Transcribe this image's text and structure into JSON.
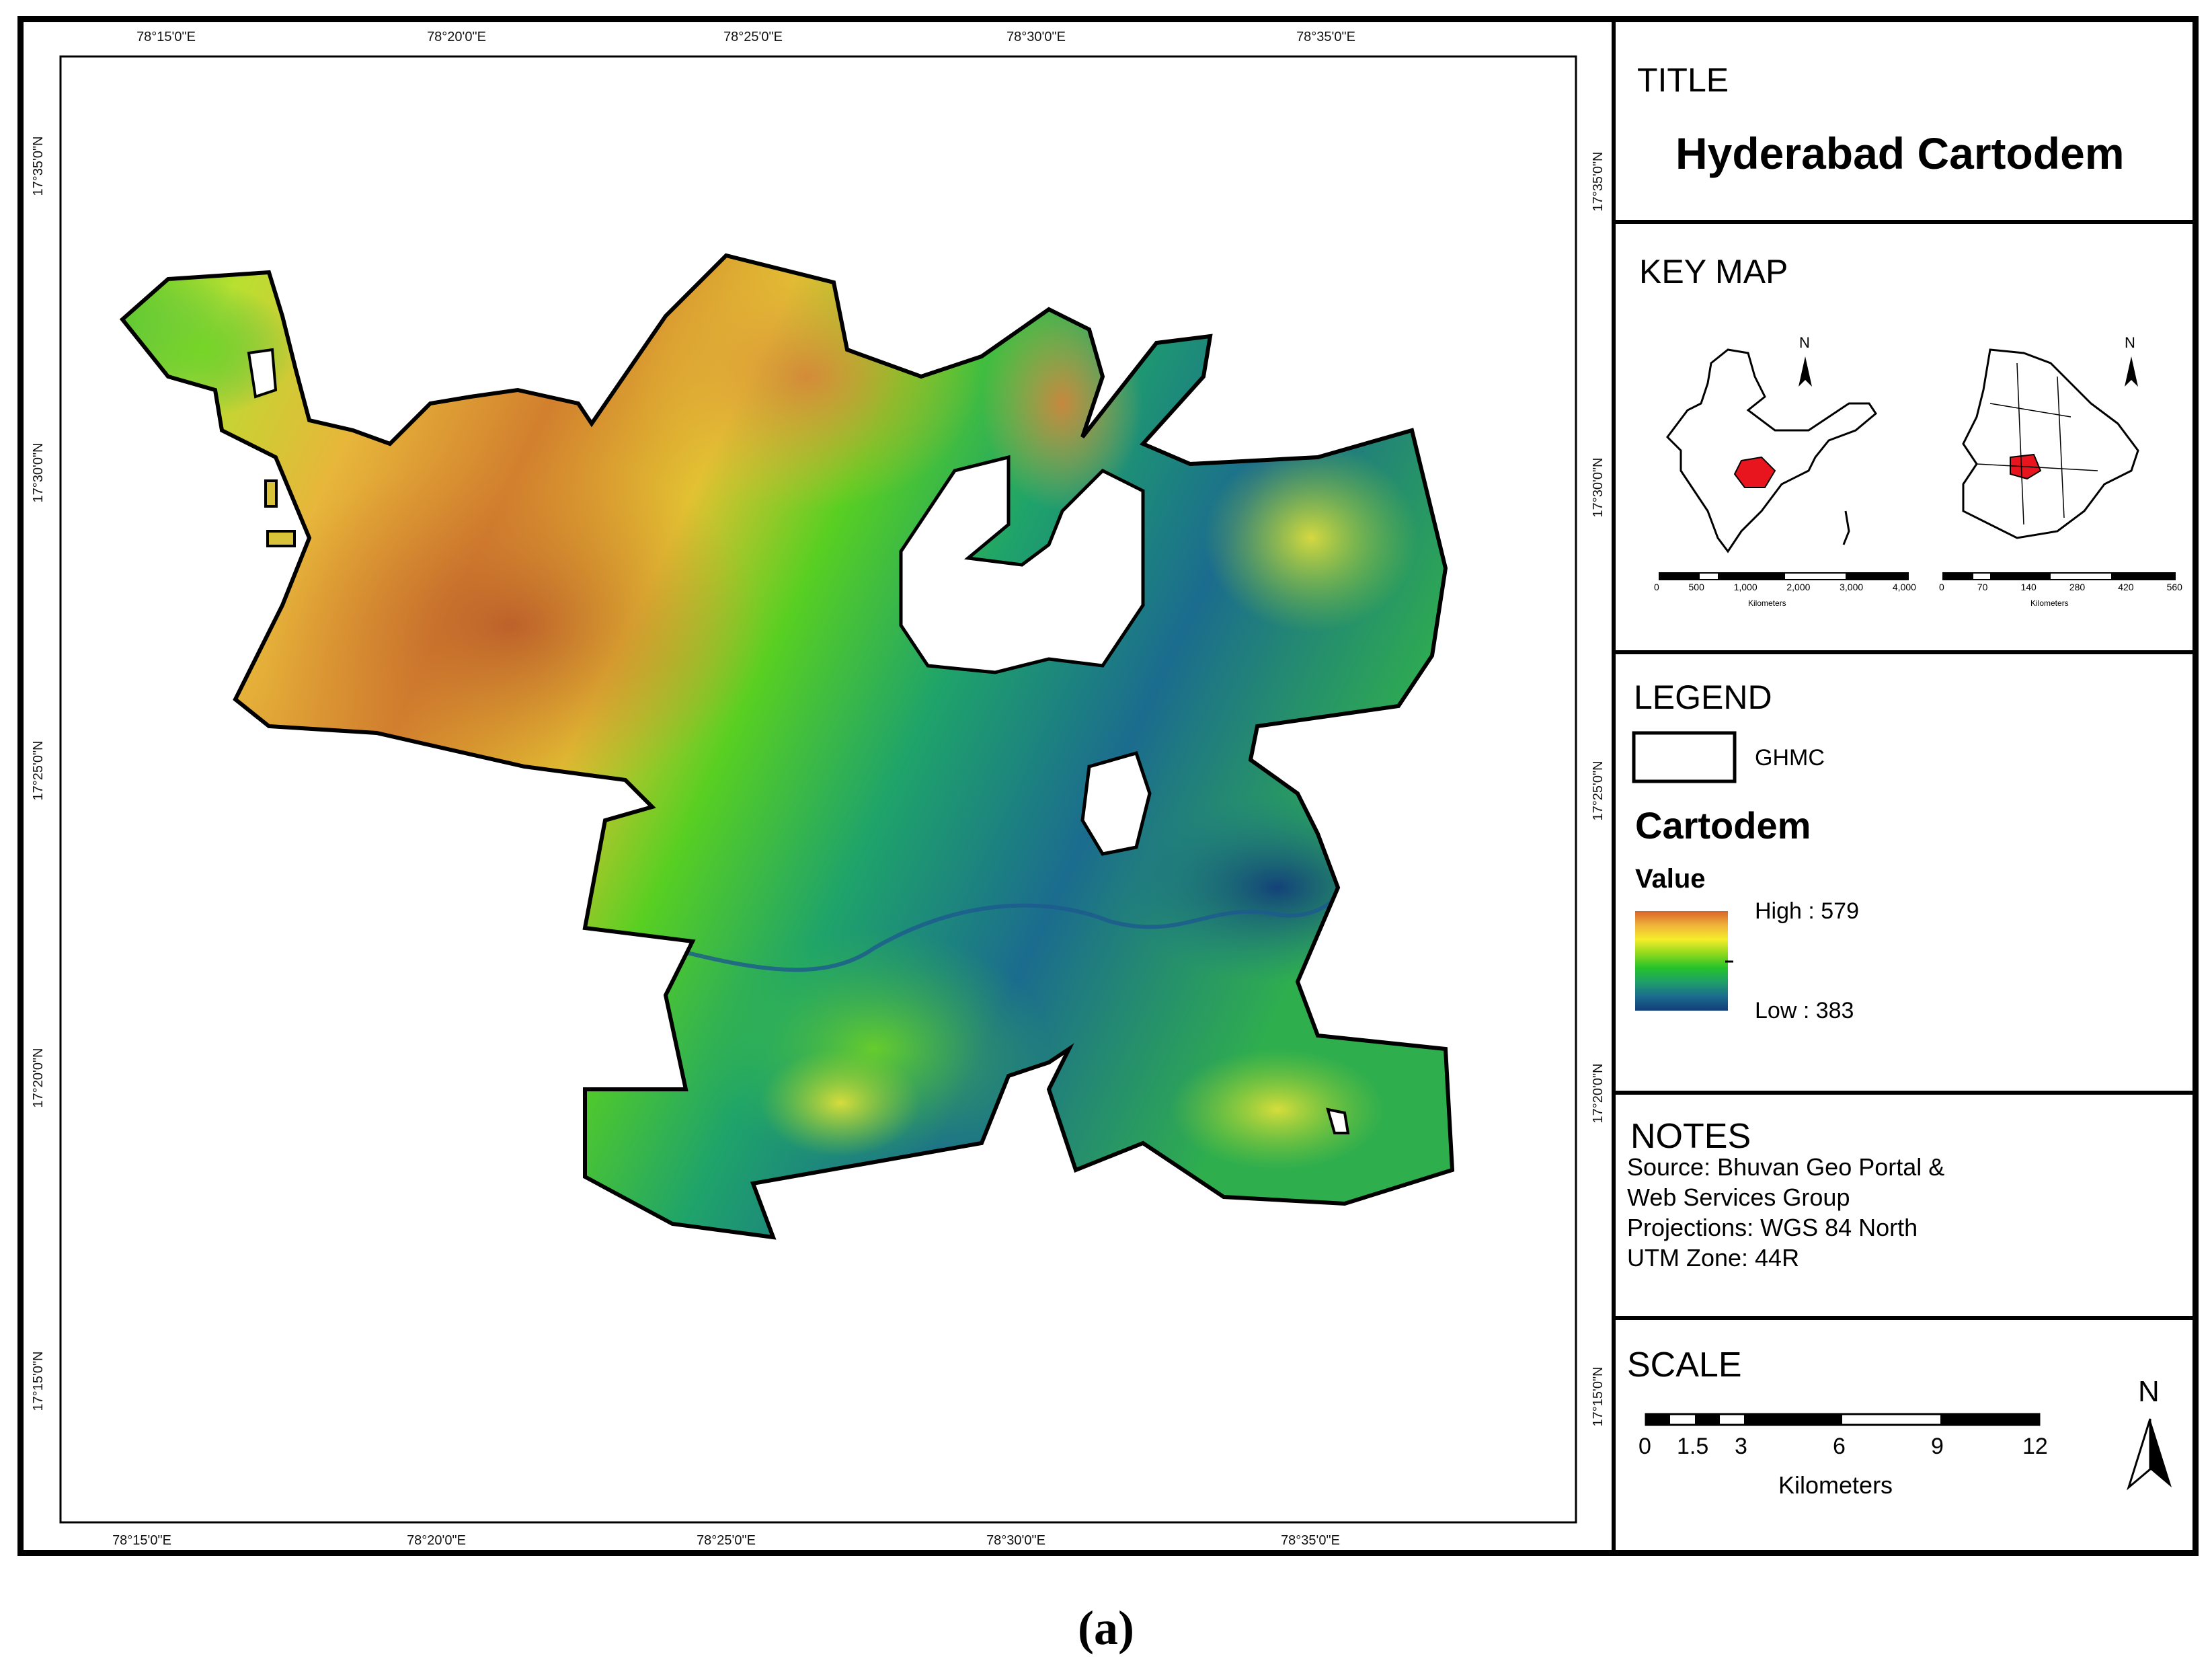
{
  "title": {
    "heading": "TITLE",
    "text": "Hyderabad Cartodem"
  },
  "key_map": {
    "heading": "KEY MAP",
    "north_label": "N",
    "india_scale": {
      "ticks": [
        "0",
        "500",
        "1,000",
        "2,000",
        "3,000",
        "4,000"
      ],
      "unit": "Kilometers"
    },
    "telangana_scale": {
      "ticks": [
        "0",
        "70",
        "140",
        "280",
        "420",
        "560"
      ],
      "unit": "Kilometers"
    },
    "highlight_color": "#e8141e"
  },
  "legend": {
    "heading": "LEGEND",
    "boundary_label": "GHMC",
    "layer_title": "Cartodem",
    "value_label": "Value",
    "high_label": "High : 579",
    "low_label": "Low : 383",
    "ramp_colors": [
      "#d7642a",
      "#f0b43a",
      "#f5ee2a",
      "#8ed81d",
      "#25c22b",
      "#1f9e6a",
      "#1b6c8e",
      "#123d7a"
    ]
  },
  "notes": {
    "heading": "NOTES",
    "lines": [
      "Source: Bhuvan Geo Portal &",
      "Web Services Group",
      "Projections: WGS 84 North",
      "UTM Zone: 44R"
    ]
  },
  "scale": {
    "heading": "SCALE",
    "ticks": [
      "0",
      "1.5",
      "3",
      "6",
      "9",
      "12"
    ],
    "unit": "Kilometers",
    "north_label": "N"
  },
  "graticule": {
    "top": [
      "78°15'0\"E",
      "78°20'0\"E",
      "78°25'0\"E",
      "78°30'0\"E",
      "78°35'0\"E"
    ],
    "bottom": [
      "78°15'0\"E",
      "78°20'0\"E",
      "78°25'0\"E",
      "78°30'0\"E",
      "78°35'0\"E"
    ],
    "left": [
      "17°35'0\"N",
      "17°30'0\"N",
      "17°25'0\"N",
      "17°20'0\"N",
      "17°15'0\"N"
    ],
    "right": [
      "17°35'0\"N",
      "17°30'0\"N",
      "17°25'0\"N",
      "17°20'0\"N",
      "17°15'0\"N"
    ]
  },
  "caption": "(a)"
}
